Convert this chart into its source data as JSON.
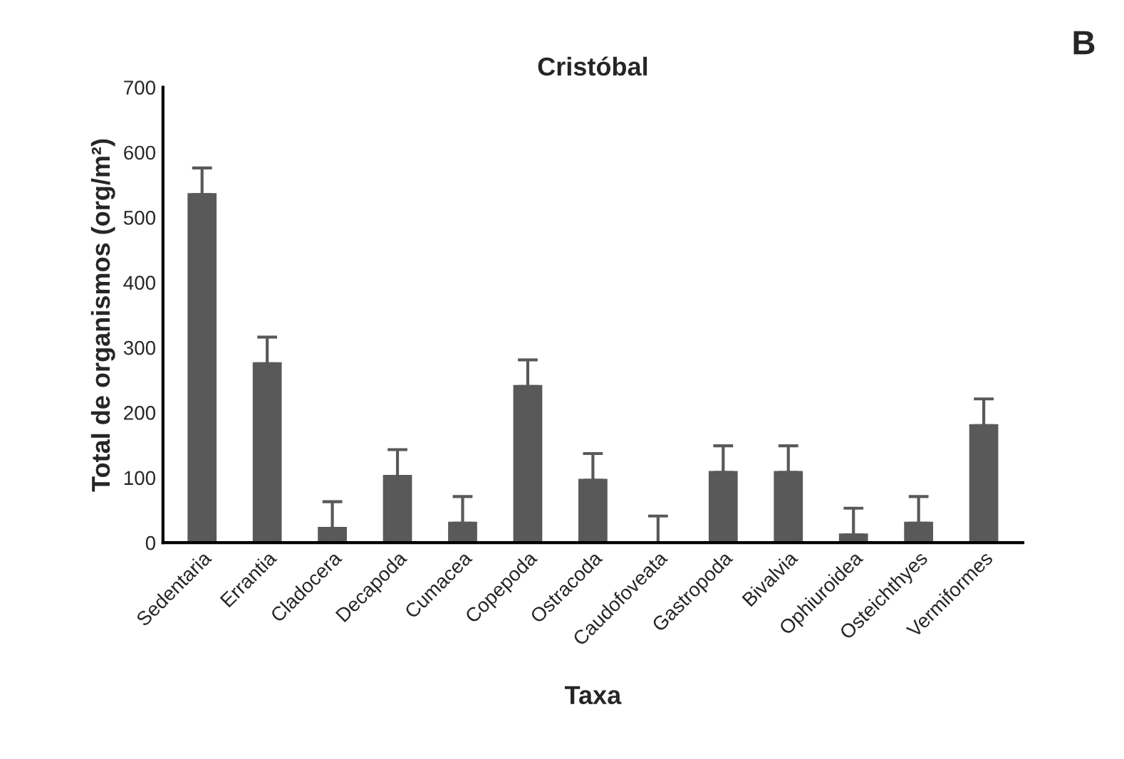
{
  "chart_data": {
    "type": "bar",
    "title": "Cristóbal",
    "xlabel": "Taxa",
    "ylabel": "Total de organismos (org/m²)",
    "categories": [
      "Sedentaria",
      "Errantia",
      "Cladocera",
      "Decapoda",
      "Cumacea",
      "Copepoda",
      "Ostracoda",
      "Caudofoveata",
      "Gastropoda",
      "Bivalvia",
      "Ophiuroidea",
      "Osteichthyes",
      "Vermiformes"
    ],
    "values": [
      535,
      275,
      22,
      102,
      30,
      240,
      96,
      0,
      108,
      108,
      12,
      30,
      180
    ],
    "errors": [
      [
        535,
        576
      ],
      [
        275,
        316
      ],
      [
        22,
        63
      ],
      [
        102,
        143
      ],
      [
        30,
        71
      ],
      [
        240,
        281
      ],
      [
        96,
        137
      ],
      [
        0,
        41
      ],
      [
        108,
        149
      ],
      [
        108,
        149
      ],
      [
        12,
        53
      ],
      [
        30,
        71
      ],
      [
        180,
        221
      ]
    ],
    "color": "#595959",
    "ylim": [
      0,
      700
    ],
    "yticks": [
      0,
      100,
      200,
      300,
      400,
      500,
      600,
      700
    ],
    "grid": false,
    "annotations": [
      "B"
    ]
  }
}
